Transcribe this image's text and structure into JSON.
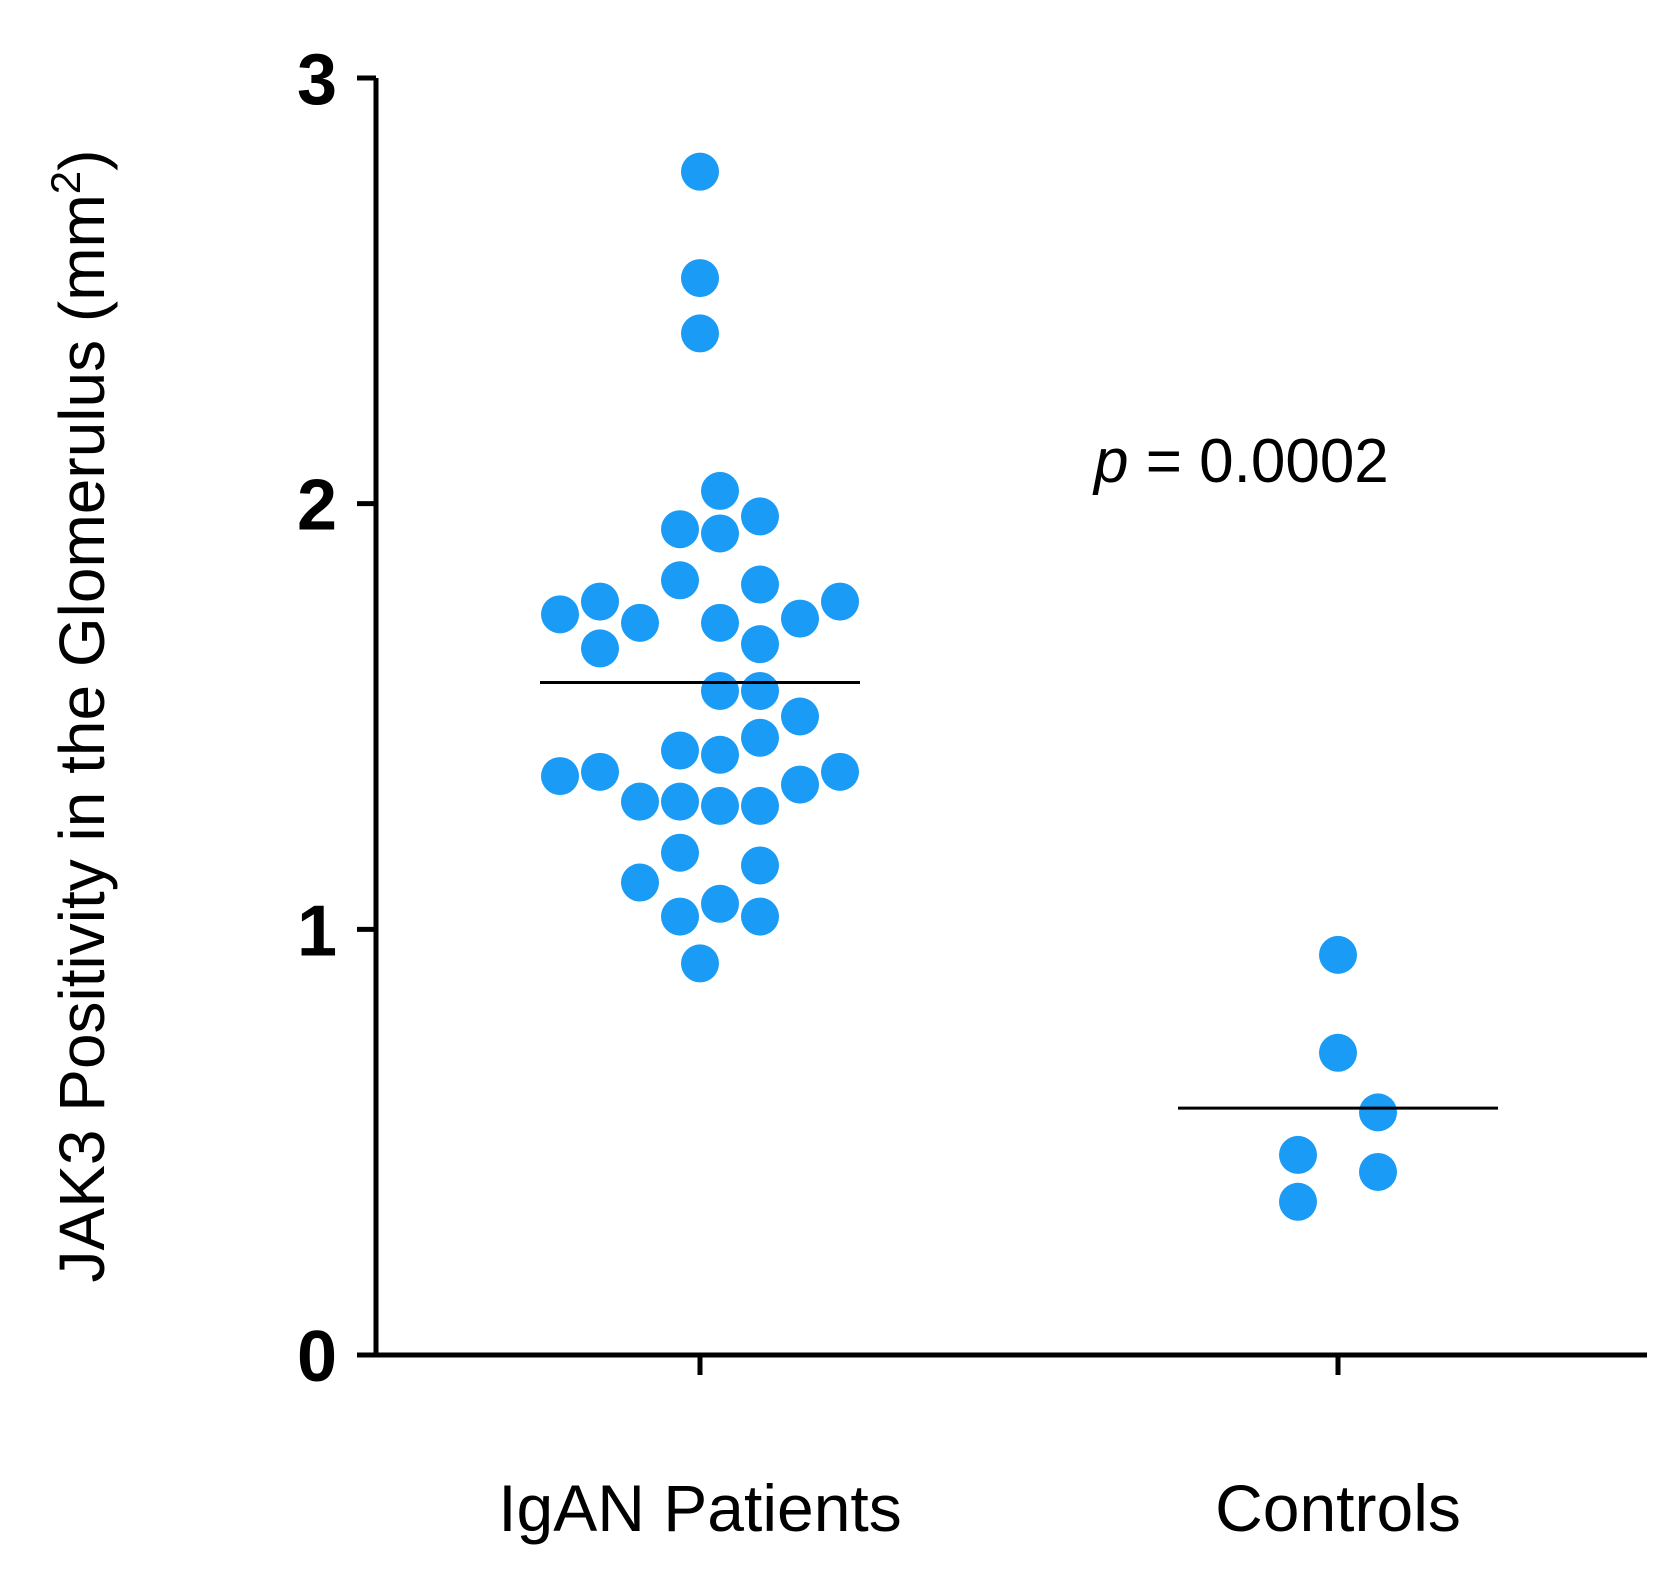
{
  "chart_data": {
    "type": "scatter",
    "title": "",
    "xlabel": "",
    "ylabel": "JAK3 Positivity in the Glomerulus (mm²)",
    "ylabel_main": "JAK3 Positivity in the Glomerulus (mm",
    "ylabel_sup": "2",
    "ylabel_close": ")",
    "ylim": [
      0,
      3
    ],
    "yticks": [
      "0",
      "1",
      "2",
      "3"
    ],
    "grid": false,
    "legend": "none",
    "point_color": "#1a9bf5",
    "line_color": "#000000",
    "annotation": {
      "p_symbol": "p",
      "text": " = 0.0002"
    },
    "categories": [
      "IgAN Patients",
      "Controls"
    ],
    "series": [
      {
        "name": "IgAN Patients",
        "mean": 1.58,
        "points": [
          {
            "value": 2.78,
            "offset": 0
          },
          {
            "value": 2.53,
            "offset": 0
          },
          {
            "value": 2.4,
            "offset": 0
          },
          {
            "value": 2.03,
            "offset": 0.5
          },
          {
            "value": 1.97,
            "offset": 1.5
          },
          {
            "value": 1.94,
            "offset": -0.5
          },
          {
            "value": 1.93,
            "offset": 0.5
          },
          {
            "value": 1.82,
            "offset": -0.5
          },
          {
            "value": 1.81,
            "offset": 1.5
          },
          {
            "value": 1.77,
            "offset": -2.5
          },
          {
            "value": 1.77,
            "offset": 3.5
          },
          {
            "value": 1.74,
            "offset": -3.5
          },
          {
            "value": 1.73,
            "offset": 2.5
          },
          {
            "value": 1.72,
            "offset": -1.5
          },
          {
            "value": 1.72,
            "offset": 0.5
          },
          {
            "value": 1.67,
            "offset": 1.5
          },
          {
            "value": 1.66,
            "offset": -2.5
          },
          {
            "value": 1.56,
            "offset": 0.5
          },
          {
            "value": 1.56,
            "offset": 1.5
          },
          {
            "value": 1.5,
            "offset": 2.5
          },
          {
            "value": 1.45,
            "offset": 1.5
          },
          {
            "value": 1.42,
            "offset": -0.5
          },
          {
            "value": 1.41,
            "offset": 0.5
          },
          {
            "value": 1.37,
            "offset": -2.5
          },
          {
            "value": 1.37,
            "offset": 3.5
          },
          {
            "value": 1.36,
            "offset": -3.5
          },
          {
            "value": 1.34,
            "offset": 2.5
          },
          {
            "value": 1.3,
            "offset": -1.5
          },
          {
            "value": 1.3,
            "offset": -0.5
          },
          {
            "value": 1.29,
            "offset": 0.5
          },
          {
            "value": 1.29,
            "offset": 1.5
          },
          {
            "value": 1.18,
            "offset": -0.5
          },
          {
            "value": 1.15,
            "offset": 1.5
          },
          {
            "value": 1.11,
            "offset": -1.5
          },
          {
            "value": 1.06,
            "offset": 0.5
          },
          {
            "value": 1.03,
            "offset": -0.5
          },
          {
            "value": 1.03,
            "offset": 1.5
          },
          {
            "value": 0.92,
            "offset": 0
          }
        ]
      },
      {
        "name": "Controls",
        "mean": 0.58,
        "points": [
          {
            "value": 0.94,
            "offset": 0
          },
          {
            "value": 0.71,
            "offset": 0
          },
          {
            "value": 0.57,
            "offset": 1
          },
          {
            "value": 0.47,
            "offset": -1
          },
          {
            "value": 0.43,
            "offset": 1
          },
          {
            "value": 0.36,
            "offset": -1
          }
        ]
      }
    ]
  }
}
